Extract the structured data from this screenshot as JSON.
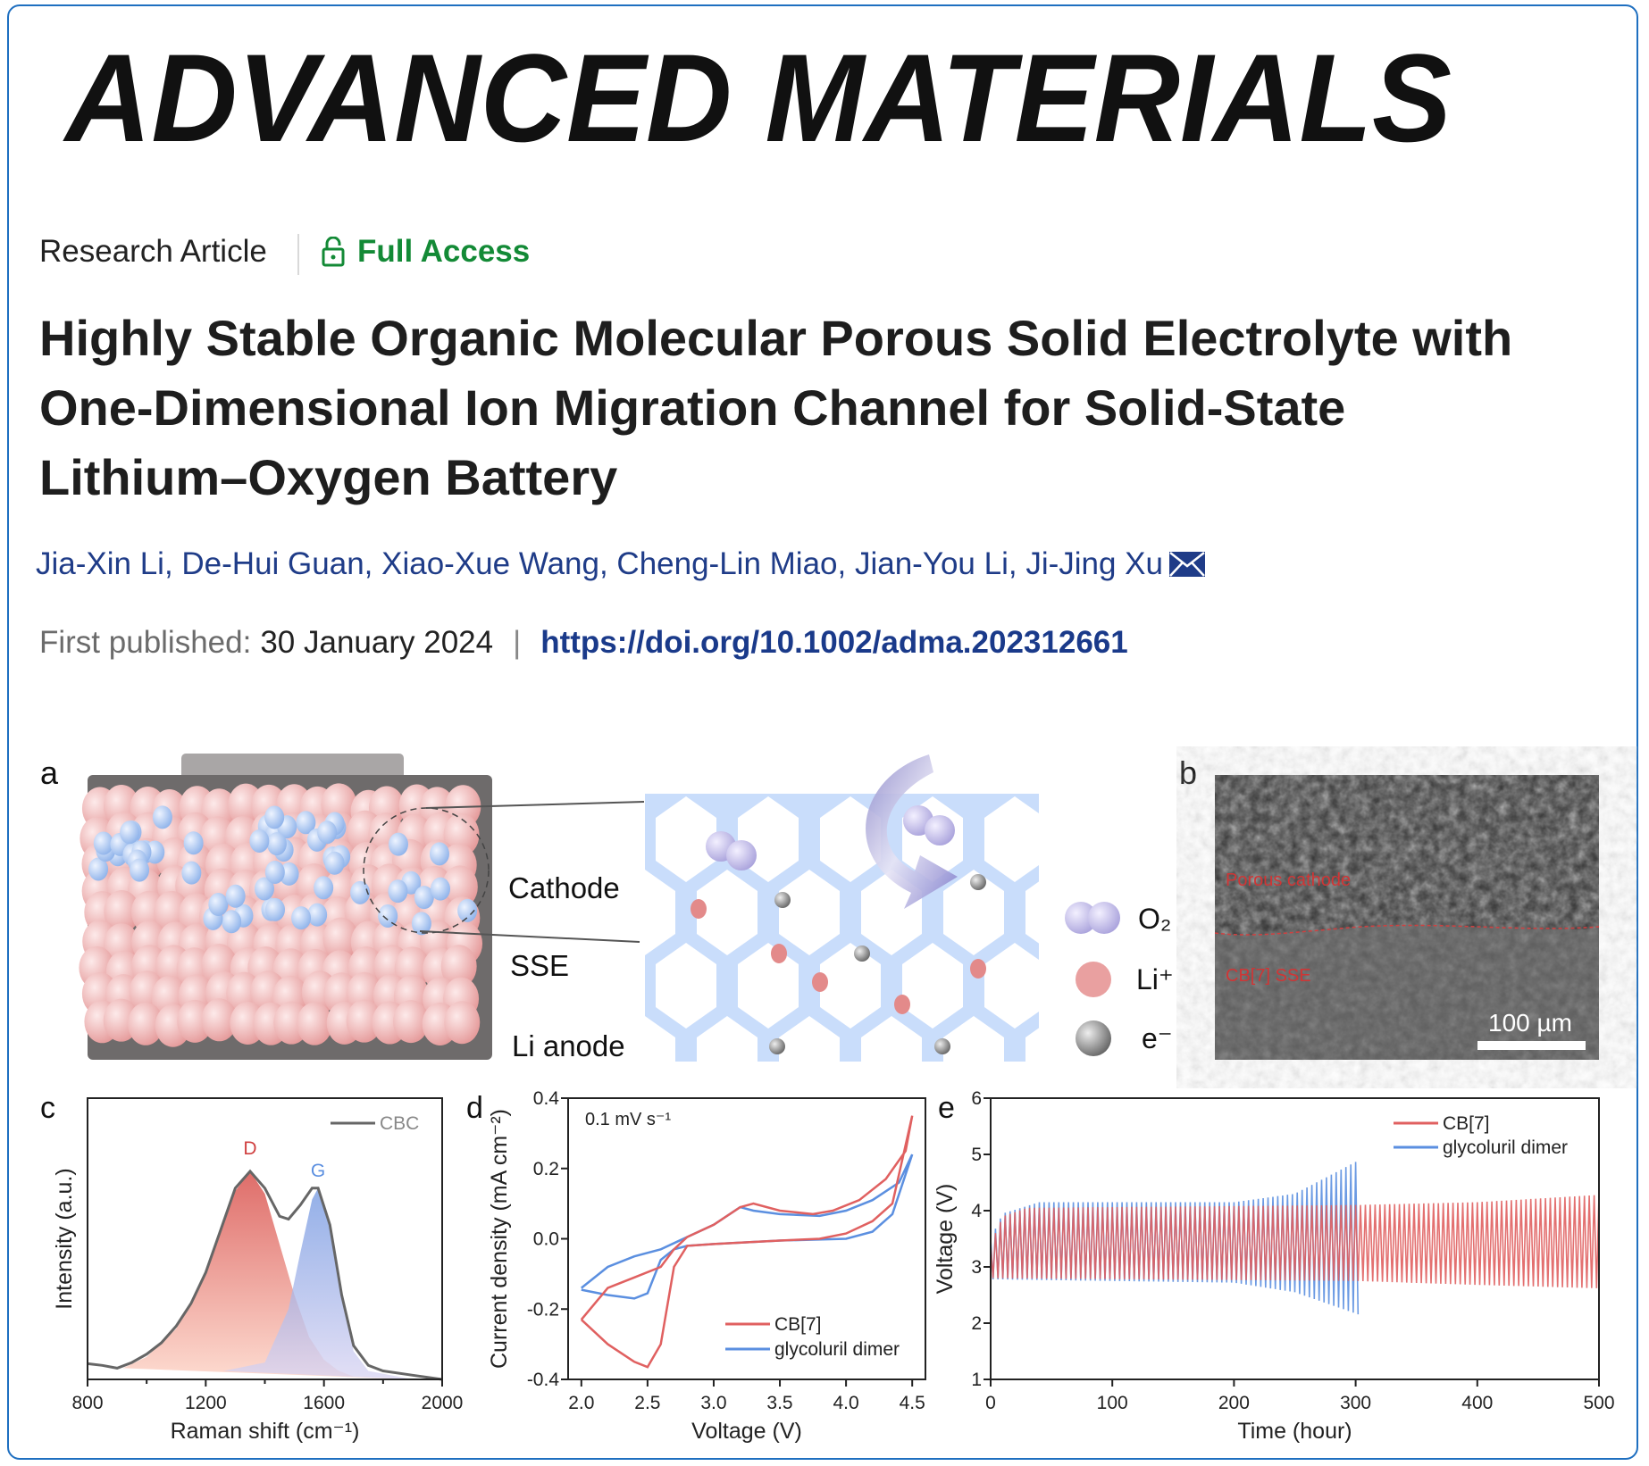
{
  "journal": {
    "logo_text": "ADVANCED MATERIALS"
  },
  "article": {
    "type": "Research Article",
    "access": "Full Access",
    "access_icon": "lock-open-icon",
    "title_lines": [
      "Highly Stable Organic Molecular Porous Solid Electrolyte with",
      "One-Dimensional Ion Migration Channel for Solid-State",
      "Lithium–Oxygen Battery"
    ],
    "authors": [
      "Jia-Xin Li",
      "De-Hui Guan",
      "Xiao-Xue Wang",
      "Cheng-Lin Miao",
      "Jian-You Li",
      "Ji-Jing Xu"
    ],
    "corresponding_icon": "envelope-icon",
    "published_label": "First published:",
    "published_date": "30 January 2024",
    "separator": "|",
    "doi": "https://doi.org/10.1002/adma.202312661"
  },
  "figure": {
    "panel_a": {
      "label": "a",
      "layers": [
        "Cathode",
        "SSE",
        "Li anode"
      ],
      "legend": [
        {
          "label": "O₂"
        },
        {
          "label": "Li⁺"
        },
        {
          "label": "e⁻"
        }
      ]
    },
    "panel_b": {
      "label": "b",
      "region_top": "Porous cathode",
      "region_bottom": "CB[7] SSE",
      "scale_bar": "100 µm"
    },
    "colors": {
      "cb7": "#e06060",
      "glycoluril": "#5b8fe0",
      "cbc": "#666666",
      "d_fill": "#e8806f",
      "g_fill": "#8fa8e8",
      "lattice": "#c9ddfb"
    }
  },
  "chart_data": [
    {
      "panel": "c",
      "type": "area",
      "xlabel": "Raman shift (cm⁻¹)",
      "ylabel": "Intensity (a.u.)",
      "xlim": [
        800,
        2000
      ],
      "ylim": [
        0,
        1
      ],
      "xticks": [
        800,
        1200,
        1600,
        2000
      ],
      "grid": false,
      "legend": "top-right",
      "peak_labels": [
        {
          "text": "D",
          "x": 1350
        },
        {
          "text": "G",
          "x": 1580
        }
      ],
      "series": [
        {
          "name": "CBC",
          "x": [
            800,
            850,
            900,
            950,
            1000,
            1050,
            1100,
            1150,
            1200,
            1250,
            1300,
            1350,
            1400,
            1450,
            1480,
            1520,
            1560,
            1580,
            1620,
            1660,
            1700,
            1750,
            1800,
            1900,
            2000
          ],
          "y": [
            0.056,
            0.05,
            0.04,
            0.06,
            0.09,
            0.13,
            0.19,
            0.27,
            0.38,
            0.53,
            0.68,
            0.74,
            0.68,
            0.58,
            0.57,
            0.62,
            0.68,
            0.68,
            0.55,
            0.3,
            0.12,
            0.05,
            0.03,
            0.015,
            0.0
          ]
        },
        {
          "x": [
            920,
            1000,
            1100,
            1200,
            1300,
            1350,
            1400,
            1450,
            1500,
            1550,
            1600,
            1650,
            1700
          ],
          "y": [
            0.04,
            0.08,
            0.18,
            0.37,
            0.67,
            0.74,
            0.66,
            0.48,
            0.3,
            0.15,
            0.07,
            0.03,
            0.01
          ]
        },
        {
          "x": [
            1260,
            1400,
            1480,
            1520,
            1560,
            1580,
            1620,
            1660,
            1700,
            1750,
            1900
          ],
          "y": [
            0.03,
            0.06,
            0.25,
            0.45,
            0.64,
            0.68,
            0.55,
            0.3,
            0.1,
            0.03,
            0.0
          ]
        }
      ]
    },
    {
      "panel": "d",
      "type": "line",
      "annotation": "0.1 mV s⁻¹",
      "xlabel": "Voltage (V)",
      "ylabel": "Current density (mA cm⁻²)",
      "xlim": [
        1.9,
        4.6
      ],
      "ylim": [
        -0.4,
        0.4
      ],
      "xticks": [
        2.0,
        2.5,
        3.0,
        3.5,
        4.0,
        4.5
      ],
      "yticks": [
        -0.4,
        -0.2,
        0.0,
        0.2,
        0.4
      ],
      "grid": false,
      "legend": "bottom-right",
      "series": [
        {
          "name": "CB[7]",
          "x": [
            2.0,
            2.2,
            2.4,
            2.5,
            2.6,
            2.7,
            2.8,
            3.0,
            3.5,
            3.8,
            4.0,
            4.2,
            4.35,
            4.5,
            4.45,
            4.3,
            4.1,
            3.9,
            3.75,
            3.5,
            3.3,
            3.2,
            3.0,
            2.8,
            2.7,
            2.6,
            2.4,
            2.2,
            2.0
          ],
          "y": [
            -0.23,
            -0.3,
            -0.35,
            -0.365,
            -0.3,
            -0.08,
            -0.02,
            -0.015,
            -0.005,
            0.0,
            0.015,
            0.05,
            0.1,
            0.35,
            0.25,
            0.17,
            0.11,
            0.08,
            0.07,
            0.08,
            0.1,
            0.09,
            0.04,
            0.005,
            -0.03,
            -0.08,
            -0.11,
            -0.14,
            -0.23
          ]
        },
        {
          "name": "glycoluril dimer",
          "x": [
            2.0,
            2.2,
            2.4,
            2.5,
            2.6,
            2.7,
            2.8,
            3.0,
            3.5,
            4.0,
            4.2,
            4.35,
            4.5,
            4.4,
            4.2,
            4.0,
            3.8,
            3.5,
            3.3,
            3.2,
            3.0,
            2.8,
            2.6,
            2.4,
            2.2,
            2.0
          ],
          "y": [
            -0.145,
            -0.16,
            -0.17,
            -0.155,
            -0.06,
            -0.03,
            -0.02,
            -0.015,
            -0.005,
            0.0,
            0.02,
            0.07,
            0.24,
            0.16,
            0.11,
            0.08,
            0.065,
            0.07,
            0.08,
            0.09,
            0.04,
            0.005,
            -0.03,
            -0.05,
            -0.08,
            -0.14
          ]
        }
      ]
    },
    {
      "panel": "e",
      "type": "line",
      "xlabel": "Time (hour)",
      "ylabel": "Voltage (V)",
      "xlim": [
        0,
        500
      ],
      "ylim": [
        1,
        6
      ],
      "xticks": [
        0,
        100,
        200,
        300,
        400,
        500
      ],
      "yticks": [
        1,
        2,
        3,
        4,
        5,
        6
      ],
      "grid": false,
      "legend": "top-right",
      "series": [
        {
          "name": "glycoluril dimer",
          "upper": [
            [
              0,
              3.5
            ],
            [
              10,
              3.95
            ],
            [
              40,
              4.15
            ],
            [
              200,
              4.15
            ],
            [
              250,
              4.3
            ],
            [
              303,
              4.9
            ]
          ],
          "lower": [
            [
              0,
              2.78
            ],
            [
              200,
              2.72
            ],
            [
              250,
              2.55
            ],
            [
              303,
              2.15
            ]
          ]
        },
        {
          "name": "CB[7]",
          "upper": [
            [
              0,
              3.4
            ],
            [
              10,
              3.9
            ],
            [
              30,
              4.05
            ],
            [
              300,
              4.1
            ],
            [
              400,
              4.15
            ],
            [
              500,
              4.28
            ]
          ],
          "lower": [
            [
              0,
              2.8
            ],
            [
              300,
              2.75
            ],
            [
              400,
              2.68
            ],
            [
              500,
              2.62
            ]
          ]
        }
      ]
    }
  ]
}
